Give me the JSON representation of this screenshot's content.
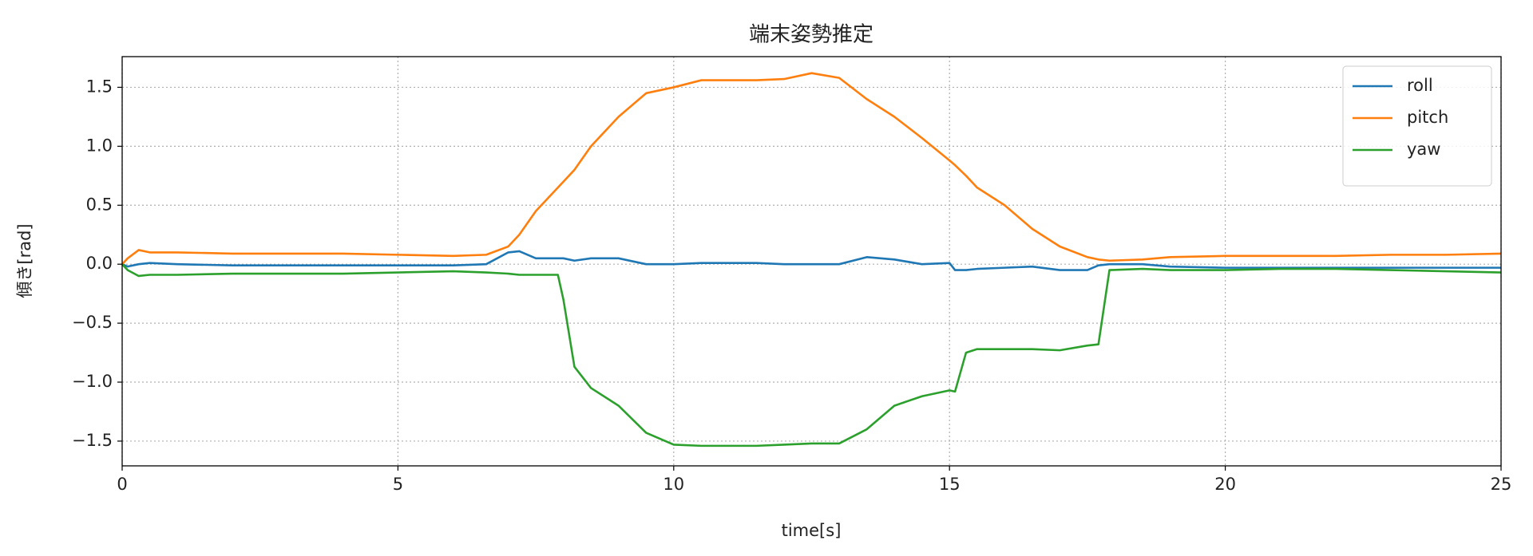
{
  "chart_data": {
    "type": "line",
    "title": "端末姿勢推定",
    "x_label": "time[s]",
    "y_label": "傾き[rad]",
    "x": [
      0,
      0.1,
      0.3,
      0.5,
      1,
      2,
      3,
      4,
      5,
      6,
      6.6,
      7,
      7.2,
      7.5,
      7.9,
      8.0,
      8.2,
      8.5,
      9,
      9.5,
      10,
      10.5,
      11,
      11.5,
      12,
      12.5,
      13,
      13.5,
      14,
      14.5,
      15,
      15.1,
      15.3,
      15.5,
      16,
      16.5,
      17,
      17.5,
      17.7,
      17.9,
      18.5,
      19,
      20,
      21,
      22,
      23,
      24,
      25
    ],
    "series": [
      {
        "name": "roll",
        "color": "#1f77b4",
        "values": [
          0,
          -0.02,
          0,
          0.01,
          0,
          -0.01,
          -0.01,
          -0.01,
          -0.01,
          -0.01,
          0,
          0.1,
          0.11,
          0.05,
          0.05,
          0.05,
          0.03,
          0.05,
          0.05,
          0,
          0,
          0.01,
          0.01,
          0.01,
          0,
          0,
          0,
          0.06,
          0.04,
          0,
          0.01,
          -0.05,
          -0.05,
          -0.04,
          -0.03,
          -0.02,
          -0.05,
          -0.05,
          -0.01,
          0,
          0,
          -0.02,
          -0.03,
          -0.03,
          -0.03,
          -0.03,
          -0.03,
          -0.03
        ]
      },
      {
        "name": "pitch",
        "color": "#ff7f0e",
        "values": [
          0,
          0.05,
          0.12,
          0.1,
          0.1,
          0.09,
          0.09,
          0.09,
          0.08,
          0.07,
          0.08,
          0.15,
          0.25,
          0.45,
          0.65,
          0.7,
          0.8,
          1.0,
          1.25,
          1.45,
          1.5,
          1.56,
          1.56,
          1.56,
          1.57,
          1.62,
          1.58,
          1.4,
          1.25,
          1.07,
          0.88,
          0.84,
          0.75,
          0.65,
          0.5,
          0.3,
          0.15,
          0.06,
          0.04,
          0.03,
          0.04,
          0.06,
          0.07,
          0.07,
          0.07,
          0.08,
          0.08,
          0.09
        ]
      },
      {
        "name": "yaw",
        "color": "#2ca02c",
        "values": [
          0,
          -0.05,
          -0.1,
          -0.09,
          -0.09,
          -0.08,
          -0.08,
          -0.08,
          -0.07,
          -0.06,
          -0.07,
          -0.08,
          -0.09,
          -0.09,
          -0.09,
          -0.3,
          -0.87,
          -1.05,
          -1.2,
          -1.43,
          -1.53,
          -1.54,
          -1.54,
          -1.54,
          -1.53,
          -1.52,
          -1.52,
          -1.4,
          -1.2,
          -1.12,
          -1.07,
          -1.08,
          -0.75,
          -0.72,
          -0.72,
          -0.72,
          -0.73,
          -0.69,
          -0.68,
          -0.05,
          -0.04,
          -0.05,
          -0.05,
          -0.04,
          -0.04,
          -0.05,
          -0.06,
          -0.07
        ]
      }
    ],
    "xlim": [
      0,
      25
    ],
    "xticks": [
      0,
      5,
      10,
      15,
      20,
      25
    ],
    "ylim": [
      -1.71,
      1.76
    ],
    "yticks": [
      {
        "value": -1.5,
        "label": "−1.5"
      },
      {
        "value": -1.0,
        "label": "−1.0"
      },
      {
        "value": -0.5,
        "label": "−0.5"
      },
      {
        "value": 0,
        "label": "0.0"
      },
      {
        "value": 0.5,
        "label": "0.5"
      },
      {
        "value": 1.0,
        "label": "1.0"
      },
      {
        "value": 1.5,
        "label": "1.5"
      }
    ],
    "grid": true,
    "legend": "upper right"
  }
}
